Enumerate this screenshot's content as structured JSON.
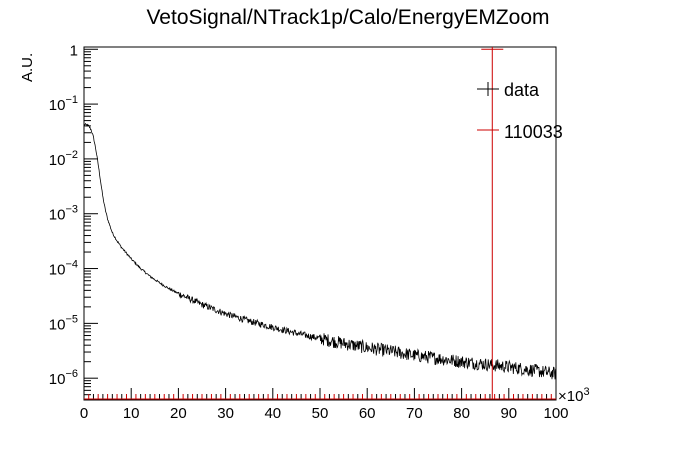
{
  "chart_data": {
    "type": "line",
    "title": "VetoSignal/NTrack1p/Calo/EnergyEMZoom",
    "xlabel": "",
    "ylabel": "A.U.",
    "x_multiplier_label": "×10",
    "x_multiplier_exp": "3",
    "x_ticks": [
      "0",
      "10",
      "20",
      "30",
      "40",
      "50",
      "60",
      "70",
      "80",
      "90",
      "100"
    ],
    "x_range": [
      0,
      100000
    ],
    "y_scale": "log",
    "y_range": [
      4e-07,
      1.1
    ],
    "y_ticks": [
      {
        "base": "1",
        "exp": ""
      },
      {
        "base": "10",
        "exp": "−1"
      },
      {
        "base": "10",
        "exp": "−2"
      },
      {
        "base": "10",
        "exp": "−3"
      },
      {
        "base": "10",
        "exp": "−4"
      },
      {
        "base": "10",
        "exp": "−5"
      },
      {
        "base": "10",
        "exp": "−6"
      }
    ],
    "y_tick_values": [
      1,
      0.1,
      0.01,
      0.001,
      0.0001,
      1e-05,
      1e-06
    ],
    "grid": false,
    "legend_position": "top-right",
    "series": [
      {
        "name": "data",
        "color": "#000000",
        "x": [
          0,
          500,
          1000,
          1500,
          2000,
          2500,
          3000,
          3500,
          4000,
          4500,
          5000,
          5500,
          6000,
          7000,
          8000,
          9000,
          10000,
          12000,
          14000,
          16000,
          18000,
          20000,
          25000,
          30000,
          35000,
          40000,
          45000,
          50000,
          55000,
          60000,
          65000,
          70000,
          75000,
          80000,
          85000,
          90000,
          95000,
          100000
        ],
        "y": [
          0.042,
          0.042,
          0.04,
          0.034,
          0.025,
          0.015,
          0.008,
          0.004,
          0.002,
          0.0012,
          0.0008,
          0.0006,
          0.00045,
          0.00032,
          0.00024,
          0.00019,
          0.00015,
          0.0001,
          7.2e-05,
          5.5e-05,
          4.3e-05,
          3.5e-05,
          2.2e-05,
          1.5e-05,
          1.1e-05,
          8.5e-06,
          6.6e-06,
          5.3e-06,
          4.3e-06,
          3.6e-06,
          3.1e-06,
          2.6e-06,
          2.3e-06,
          2e-06,
          1.8e-06,
          1.6e-06,
          1.4e-06,
          1.2e-06
        ]
      },
      {
        "name": "110033",
        "color": "#cc0000",
        "x": [
          86500
        ],
        "y": [
          1.1
        ],
        "stem_from_floor": true
      }
    ]
  }
}
